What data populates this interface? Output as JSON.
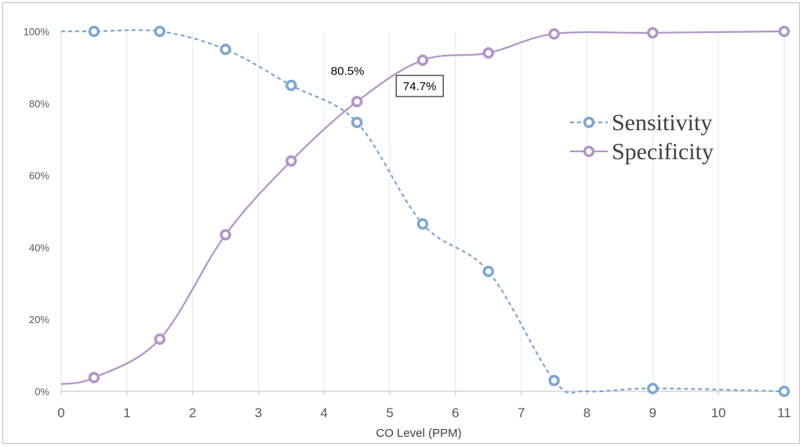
{
  "chart_data": {
    "type": "line",
    "title": "",
    "xlabel": "CO Level (PPM)",
    "ylabel": "",
    "xlim": [
      0,
      11
    ],
    "ylim": [
      0,
      100
    ],
    "x_ticks": [
      "0",
      "1",
      "2",
      "3",
      "4",
      "5",
      "6",
      "7",
      "8",
      "9",
      "10",
      "11"
    ],
    "y_ticks": [
      "0%",
      "20%",
      "40%",
      "60%",
      "80%",
      "100%"
    ],
    "grid": "vertical",
    "legend_position": "right",
    "series": [
      {
        "name": "Sensitivity",
        "color": "#7ba7d4",
        "style": "dashed",
        "x": [
          0,
          0.5,
          1.5,
          2.5,
          3.5,
          4.5,
          5.5,
          6.5,
          7.5,
          8,
          9,
          11
        ],
        "y": [
          100,
          100,
          100,
          95,
          85,
          74.7,
          46.5,
          33.3,
          3,
          0,
          0.8,
          0
        ],
        "markers": [
          0.5,
          1.5,
          2.5,
          3.5,
          4.5,
          5.5,
          6.5,
          7.5,
          9,
          11
        ]
      },
      {
        "name": "Specificity",
        "color": "#b294c7",
        "style": "solid",
        "x": [
          0,
          0.5,
          1.5,
          2.5,
          3.5,
          4.5,
          5.5,
          6.5,
          7.5,
          9,
          11
        ],
        "y": [
          2,
          3.8,
          14.5,
          43.5,
          64,
          80.5,
          92,
          94,
          99.3,
          99.6,
          100
        ],
        "markers": [
          0.5,
          1.5,
          2.5,
          3.5,
          4.5,
          5.5,
          6.5,
          7.5,
          9,
          11
        ]
      }
    ],
    "annotations": [
      {
        "text": "80.5%",
        "boxed": false,
        "x": 4.5,
        "y": 80.5
      },
      {
        "text": "74.7%",
        "boxed": true,
        "x": 4.5,
        "y": 74.7
      }
    ]
  }
}
